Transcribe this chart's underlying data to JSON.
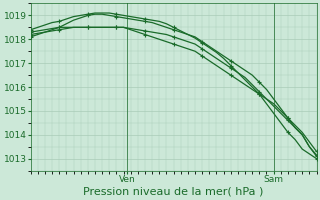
{
  "title": "Pression niveau de la mer( hPa )",
  "bg_color": "#cce8d8",
  "grid_color": "#aaccb8",
  "line_color": "#1a6b2a",
  "ylim": [
    1012.5,
    1019.5
  ],
  "yticks": [
    1013,
    1014,
    1015,
    1016,
    1017,
    1018,
    1019
  ],
  "xlim": [
    0,
    80
  ],
  "xtick_positions": [
    27,
    68
  ],
  "xtick_labels": [
    "Ven",
    "Sam"
  ],
  "vline_positions": [
    27,
    68
  ],
  "series": [
    {
      "x": [
        0,
        2,
        4,
        6,
        8,
        10,
        12,
        14,
        16,
        18,
        20,
        22,
        24,
        26,
        28,
        30,
        32,
        34,
        36,
        38,
        40,
        42,
        44,
        46,
        48,
        50,
        52,
        54,
        56,
        58,
        60,
        62,
        64,
        66,
        68,
        70,
        72,
        74,
        76,
        78,
        80
      ],
      "y": [
        1018.3,
        1018.35,
        1018.4,
        1018.45,
        1018.5,
        1018.5,
        1018.5,
        1018.5,
        1018.5,
        1018.5,
        1018.5,
        1018.5,
        1018.5,
        1018.5,
        1018.4,
        1018.3,
        1018.2,
        1018.1,
        1018.0,
        1017.9,
        1017.8,
        1017.7,
        1017.6,
        1017.5,
        1017.3,
        1017.1,
        1016.9,
        1016.7,
        1016.5,
        1016.3,
        1016.1,
        1015.9,
        1015.7,
        1015.5,
        1015.3,
        1015.0,
        1014.7,
        1014.4,
        1014.1,
        1013.7,
        1013.3
      ]
    },
    {
      "x": [
        0,
        2,
        4,
        6,
        8,
        10,
        12,
        14,
        16,
        18,
        20,
        22,
        24,
        26,
        28,
        30,
        32,
        34,
        36,
        38,
        40,
        42,
        44,
        46,
        48,
        50,
        52,
        54,
        56,
        58,
        60,
        62,
        64,
        66,
        68,
        70,
        72,
        74,
        76,
        78,
        80
      ],
      "y": [
        1018.2,
        1018.25,
        1018.3,
        1018.35,
        1018.4,
        1018.45,
        1018.5,
        1018.5,
        1018.5,
        1018.5,
        1018.5,
        1018.5,
        1018.5,
        1018.5,
        1018.45,
        1018.4,
        1018.35,
        1018.3,
        1018.25,
        1018.2,
        1018.1,
        1018.0,
        1017.9,
        1017.8,
        1017.6,
        1017.4,
        1017.2,
        1017.0,
        1016.8,
        1016.6,
        1016.4,
        1016.1,
        1015.8,
        1015.5,
        1015.2,
        1014.9,
        1014.6,
        1014.3,
        1014.0,
        1013.5,
        1013.1
      ]
    },
    {
      "x": [
        0,
        2,
        4,
        6,
        8,
        10,
        12,
        14,
        16,
        18,
        20,
        22,
        24,
        26,
        28,
        30,
        32,
        34,
        36,
        38,
        40,
        42,
        44,
        46,
        48,
        50,
        52,
        54,
        56,
        58,
        60,
        62,
        64,
        66,
        68,
        70,
        72,
        74,
        76,
        78,
        80
      ],
      "y": [
        1018.1,
        1018.2,
        1018.3,
        1018.4,
        1018.5,
        1018.65,
        1018.8,
        1018.9,
        1019.0,
        1019.05,
        1019.05,
        1019.0,
        1018.95,
        1018.9,
        1018.85,
        1018.8,
        1018.75,
        1018.7,
        1018.6,
        1018.5,
        1018.4,
        1018.3,
        1018.2,
        1018.1,
        1017.9,
        1017.7,
        1017.5,
        1017.3,
        1017.1,
        1016.9,
        1016.7,
        1016.5,
        1016.2,
        1015.9,
        1015.5,
        1015.1,
        1014.7,
        1014.3,
        1014.0,
        1013.5,
        1013.15
      ]
    },
    {
      "x": [
        0,
        2,
        4,
        6,
        8,
        10,
        12,
        14,
        16,
        18,
        20,
        22,
        24,
        26,
        28,
        30,
        32,
        34,
        36,
        38,
        40,
        42,
        44,
        46,
        48,
        50,
        52,
        54,
        56,
        58,
        60,
        62,
        64,
        66,
        68,
        70,
        72,
        74,
        76,
        78,
        80
      ],
      "y": [
        1018.4,
        1018.5,
        1018.6,
        1018.7,
        1018.75,
        1018.85,
        1018.95,
        1019.0,
        1019.05,
        1019.1,
        1019.1,
        1019.1,
        1019.05,
        1019.0,
        1018.95,
        1018.9,
        1018.85,
        1018.8,
        1018.75,
        1018.65,
        1018.5,
        1018.35,
        1018.2,
        1018.05,
        1017.85,
        1017.65,
        1017.45,
        1017.2,
        1016.9,
        1016.6,
        1016.3,
        1016.0,
        1015.7,
        1015.3,
        1014.9,
        1014.5,
        1014.1,
        1013.8,
        1013.4,
        1013.2,
        1013.0
      ]
    }
  ],
  "font_color": "#1a6b2a",
  "title_fontsize": 8,
  "tick_fontsize": 6.5,
  "marker_every": 4,
  "marker_size": 3,
  "lw": 0.9
}
